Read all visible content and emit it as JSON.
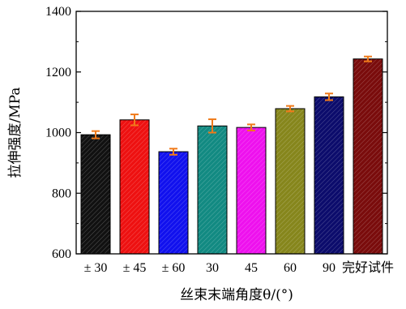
{
  "chart_data": {
    "type": "bar",
    "title": "",
    "xlabel": "丝束末端角度θ/(°)",
    "ylabel": "拉伸强度/MPa",
    "ylim": [
      600,
      1400
    ],
    "yticks": [
      600,
      800,
      1000,
      1200,
      1400
    ],
    "categories": [
      "± 30",
      "± 45",
      "± 60",
      "30",
      "45",
      "60",
      "90",
      "完好试件"
    ],
    "values": [
      993,
      1042,
      937,
      1022,
      1017,
      1079,
      1118,
      1243
    ],
    "errors": [
      12,
      18,
      10,
      22,
      10,
      9,
      11,
      8
    ],
    "bar_colors": [
      "#111111",
      "#ee1111",
      "#1111ee",
      "#128a82",
      "#ee11ee",
      "#86861c",
      "#0c0c6c",
      "#7a0c0c"
    ],
    "error_color": "#f07a1a",
    "pattern": "diagonal-hatch",
    "grid": false,
    "legend": "none"
  }
}
